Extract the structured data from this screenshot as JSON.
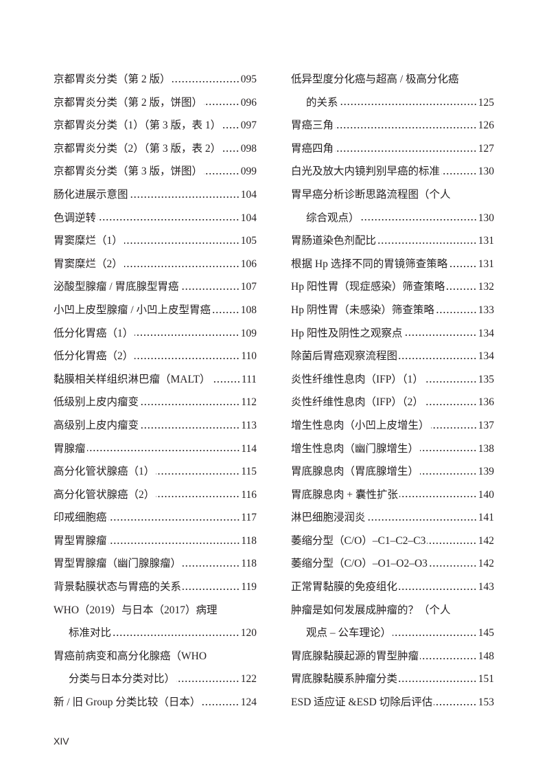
{
  "folio": "XIV",
  "left_column": [
    {
      "lines": [
        "京都胃炎分类（第 2 版）"
      ],
      "page": "095"
    },
    {
      "lines": [
        "京都胃炎分类（第 2 版，饼图）"
      ],
      "page": "096"
    },
    {
      "lines": [
        "京都胃炎分类（1）（第 3 版，表 1）"
      ],
      "page": "097"
    },
    {
      "lines": [
        "京都胃炎分类（2）（第 3 版，表 2）"
      ],
      "page": "098"
    },
    {
      "lines": [
        "京都胃炎分类（第 3 版，饼图）"
      ],
      "page": "099"
    },
    {
      "lines": [
        "肠化进展示意图"
      ],
      "page": "104"
    },
    {
      "lines": [
        "色调逆转"
      ],
      "page": "104"
    },
    {
      "lines": [
        "胃窦糜烂（1）"
      ],
      "page": "105"
    },
    {
      "lines": [
        "胃窦糜烂（2）"
      ],
      "page": "106"
    },
    {
      "lines": [
        "泌酸型腺瘤 / 胃底腺型胃癌"
      ],
      "page": "107"
    },
    {
      "lines": [
        "小凹上皮型腺瘤 / 小凹上皮型胃癌"
      ],
      "page": "108"
    },
    {
      "lines": [
        "低分化胃癌（1）"
      ],
      "page": "109"
    },
    {
      "lines": [
        "低分化胃癌（2）"
      ],
      "page": "110"
    },
    {
      "lines": [
        "黏膜相关样组织淋巴瘤（MALT）"
      ],
      "page": "111"
    },
    {
      "lines": [
        "低级别上皮内瘤变"
      ],
      "page": "112"
    },
    {
      "lines": [
        "高级别上皮内瘤变"
      ],
      "page": "113"
    },
    {
      "lines": [
        "胃腺瘤"
      ],
      "page": "114"
    },
    {
      "lines": [
        "高分化管状腺癌（1）"
      ],
      "page": "115"
    },
    {
      "lines": [
        "高分化管状腺癌（2）"
      ],
      "page": "116"
    },
    {
      "lines": [
        "印戒细胞癌"
      ],
      "page": "117"
    },
    {
      "lines": [
        "胃型胃腺瘤"
      ],
      "page": "118"
    },
    {
      "lines": [
        "胃型胃腺瘤（幽门腺腺瘤）"
      ],
      "page": "118"
    },
    {
      "lines": [
        "背景黏膜状态与胃癌的关系"
      ],
      "page": "119"
    },
    {
      "lines": [
        "WHO（2019）与日本（2017）病理",
        "标准对比"
      ],
      "page": "120"
    },
    {
      "lines": [
        "胃癌前病变和高分化腺癌（WHO",
        "分类与日本分类对比）"
      ],
      "page": "122"
    },
    {
      "lines": [
        "新 / 旧 Group 分类比较（日本）"
      ],
      "page": "124"
    }
  ],
  "right_column": [
    {
      "lines": [
        "低异型度分化癌与超高 / 极高分化癌",
        "的关系"
      ],
      "page": "125"
    },
    {
      "lines": [
        "胃癌三角"
      ],
      "page": "126"
    },
    {
      "lines": [
        "胃癌四角"
      ],
      "page": "127"
    },
    {
      "lines": [
        "白光及放大内镜判别早癌的标准"
      ],
      "page": "130"
    },
    {
      "lines": [
        "胃早癌分析诊断思路流程图（个人",
        "综合观点）"
      ],
      "page": "130"
    },
    {
      "lines": [
        "胃肠道染色剂配比"
      ],
      "page": "131"
    },
    {
      "lines": [
        "根据 Hp 选择不同的胃镜筛查策略"
      ],
      "page": "131"
    },
    {
      "lines": [
        "Hp 阳性胃（现症感染）筛查策略"
      ],
      "page": "132"
    },
    {
      "lines": [
        "Hp 阴性胃（未感染）筛查策略"
      ],
      "page": "133"
    },
    {
      "lines": [
        "Hp 阳性及阴性之观察点"
      ],
      "page": "134"
    },
    {
      "lines": [
        "除菌后胃癌观察流程图"
      ],
      "page": "134"
    },
    {
      "lines": [
        "炎性纤维性息肉（IFP）（1）"
      ],
      "page": "135"
    },
    {
      "lines": [
        "炎性纤维性息肉（IFP）（2）"
      ],
      "page": "136"
    },
    {
      "lines": [
        "增生性息肉（小凹上皮增生）"
      ],
      "page": "137"
    },
    {
      "lines": [
        "增生性息肉（幽门腺增生）"
      ],
      "page": "138"
    },
    {
      "lines": [
        "胃底腺息肉（胃底腺增生）"
      ],
      "page": "139"
    },
    {
      "lines": [
        "胃底腺息肉 + 囊性扩张"
      ],
      "page": "140"
    },
    {
      "lines": [
        "淋巴细胞浸润炎"
      ],
      "page": "141"
    },
    {
      "lines": [
        "萎缩分型（C/O）–C1–C2–C3"
      ],
      "page": "142"
    },
    {
      "lines": [
        "萎缩分型（C/O）–O1–O2–O3"
      ],
      "page": "142"
    },
    {
      "lines": [
        "正常胃黏膜的免疫组化"
      ],
      "page": "143"
    },
    {
      "lines": [
        "肿瘤是如何发展成肿瘤的？（个人",
        "观点 – 公车理论）"
      ],
      "page": "145"
    },
    {
      "lines": [
        "胃底腺黏膜起源的胃型肿瘤"
      ],
      "page": "148"
    },
    {
      "lines": [
        "胃底腺黏膜系肿瘤分类"
      ],
      "page": "151"
    },
    {
      "lines": [
        "ESD 适应证 &ESD 切除后评估"
      ],
      "page": "153"
    }
  ]
}
